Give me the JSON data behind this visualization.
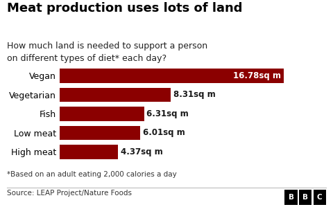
{
  "title": "Meat production uses lots of land",
  "subtitle": "How much land is needed to support a person\non different types of diet* each day?",
  "categories": [
    "High meat",
    "Low meat",
    "Fish",
    "Vegetarian",
    "Vegan"
  ],
  "values": [
    16.78,
    8.31,
    6.31,
    6.01,
    4.37
  ],
  "labels": [
    "16.78sq m",
    "8.31sq m",
    "6.31sq m",
    "6.01sq m",
    "4.37sq m"
  ],
  "bar_color": "#8B0000",
  "label_color_inside": "#ffffff",
  "label_color_outside": "#1a1a1a",
  "background_color": "#ffffff",
  "footnote": "*Based on an adult eating 2,000 calories a day",
  "source": "Source: LEAP Project/Nature Foods",
  "xlim": [
    0,
    19.5
  ],
  "title_fontsize": 13,
  "subtitle_fontsize": 9,
  "label_fontsize": 8.5,
  "category_fontsize": 9,
  "footnote_fontsize": 7.5,
  "source_fontsize": 7.5,
  "inside_threshold": 14.0
}
